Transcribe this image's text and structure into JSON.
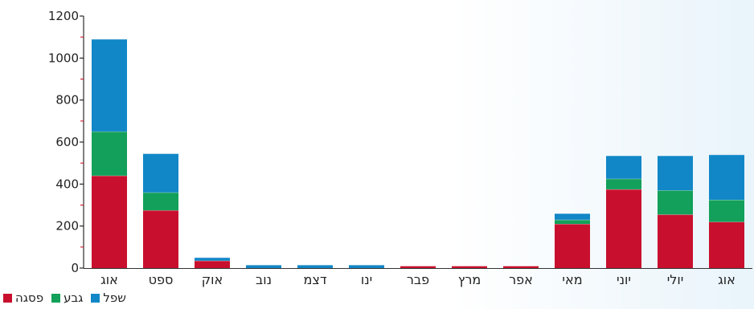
{
  "chart_data": {
    "type": "bar",
    "stacked": true,
    "categories": [
      "אוג",
      "ספט",
      "אוק",
      "נוב",
      "דצמ",
      "ינו",
      "פבר",
      "מרץ",
      "אפר",
      "מאי",
      "יוני",
      "יולי",
      "אוג"
    ],
    "series": [
      {
        "name": "פסגה",
        "color": "#c8102e",
        "values": [
          440,
          275,
          35,
          0,
          0,
          0,
          10,
          10,
          10,
          210,
          375,
          255,
          220
        ]
      },
      {
        "name": "גבע",
        "color": "#12a05a",
        "values": [
          210,
          85,
          0,
          0,
          0,
          0,
          0,
          0,
          0,
          20,
          50,
          115,
          105
        ]
      },
      {
        "name": "שפל",
        "color": "#1187c7",
        "values": [
          440,
          185,
          15,
          15,
          15,
          15,
          0,
          0,
          0,
          30,
          110,
          165,
          215
        ]
      }
    ],
    "yticks": [
      0,
      200,
      400,
      600,
      800,
      1000,
      1200
    ],
    "ylim": [
      0,
      1200
    ],
    "grid": false,
    "legend_position": "bottom-left"
  }
}
